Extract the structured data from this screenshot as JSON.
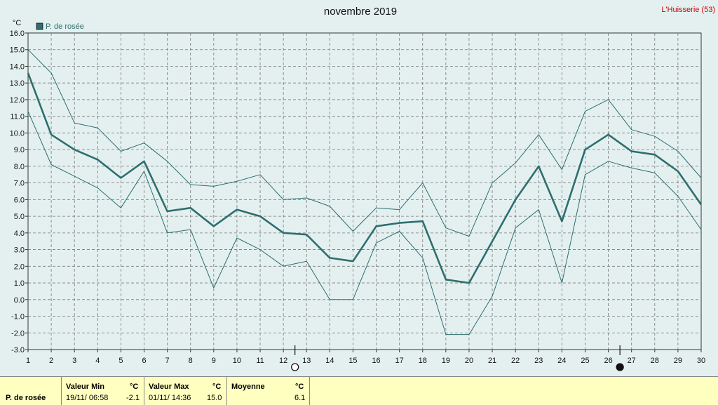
{
  "title": "novembre 2019",
  "station": "L'Huisserie (53)",
  "colors": {
    "background": "#e4f0f0",
    "series": "#2e6e6e",
    "grid": "#777777",
    "panel": "#ffffc0",
    "station": "#d00000"
  },
  "chart_data": {
    "type": "line",
    "unit": "°C",
    "legend": {
      "label": "P. de rosée",
      "placement": "top-left"
    },
    "grid": true,
    "xlim": [
      1,
      30
    ],
    "ylim": [
      -3,
      16
    ],
    "x": [
      1,
      2,
      3,
      4,
      5,
      6,
      7,
      8,
      9,
      10,
      11,
      12,
      13,
      14,
      15,
      16,
      17,
      18,
      19,
      20,
      21,
      22,
      23,
      24,
      25,
      26,
      27,
      28,
      29,
      30
    ],
    "x_ticks": [
      "1",
      "2",
      "3",
      "4",
      "5",
      "6",
      "7",
      "8",
      "9",
      "10",
      "11",
      "12",
      "13",
      "14",
      "15",
      "16",
      "17",
      "18",
      "19",
      "20",
      "21",
      "22",
      "23",
      "24",
      "25",
      "26",
      "27",
      "28",
      "29",
      "30"
    ],
    "y_ticks": [
      "-3.0",
      "-2.0",
      "-1.0",
      "0.0",
      "1.0",
      "2.0",
      "3.0",
      "4.0",
      "5.0",
      "6.0",
      "7.0",
      "8.0",
      "9.0",
      "10.0",
      "11.0",
      "12.0",
      "13.0",
      "14.0",
      "15.0",
      "16.0"
    ],
    "series": [
      {
        "name": "P. de rosée",
        "role": "mean",
        "values": [
          13.6,
          9.9,
          9.0,
          8.4,
          7.3,
          8.3,
          5.3,
          5.5,
          4.4,
          5.4,
          5.0,
          4.0,
          3.9,
          2.5,
          2.3,
          4.4,
          4.6,
          4.7,
          1.2,
          1.0,
          3.5,
          6.0,
          8.0,
          4.7,
          9.0,
          9.9,
          8.9,
          8.7,
          7.7,
          5.7
        ]
      },
      {
        "role": "max",
        "values": [
          15.0,
          13.6,
          10.6,
          10.3,
          8.9,
          9.4,
          8.3,
          6.9,
          6.8,
          7.1,
          7.5,
          6.0,
          6.1,
          5.6,
          4.1,
          5.5,
          5.4,
          7.0,
          4.3,
          3.8,
          7.0,
          8.2,
          9.9,
          7.8,
          11.3,
          12.0,
          10.2,
          9.8,
          8.9,
          7.3
        ]
      },
      {
        "role": "min",
        "values": [
          11.3,
          8.1,
          7.4,
          6.7,
          5.5,
          7.7,
          4.0,
          4.2,
          0.7,
          3.7,
          3.0,
          2.0,
          2.3,
          0.0,
          0.0,
          3.4,
          4.1,
          2.5,
          -2.1,
          -2.1,
          0.2,
          4.3,
          5.4,
          1.0,
          7.5,
          8.3,
          7.9,
          7.6,
          6.2,
          4.2
        ]
      }
    ],
    "moon_phases": [
      {
        "day": 12.5,
        "phase": "full-moon-icon"
      },
      {
        "day": 26.5,
        "phase": "new-moon-icon"
      }
    ]
  },
  "stats": {
    "row_label": "P. de rosée",
    "min": {
      "label": "Valeur Min",
      "unit": "°C",
      "datetime": "19/11/ 06:58",
      "value": "-2.1"
    },
    "max": {
      "label": "Valeur Max",
      "unit": "°C",
      "datetime": "01/11/ 14:36",
      "value": "15.0"
    },
    "avg": {
      "label": "Moyenne",
      "unit": "°C",
      "value": "6.1"
    }
  }
}
